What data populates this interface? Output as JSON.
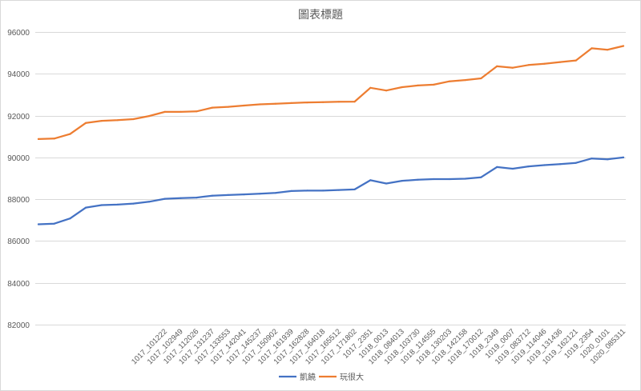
{
  "chart_data": {
    "type": "line",
    "title": "圖表標題",
    "xlabel": "",
    "ylabel": "",
    "ylim": [
      82000,
      96000
    ],
    "yticks": [
      82000,
      84000,
      86000,
      88000,
      90000,
      92000,
      94000,
      96000
    ],
    "grid": true,
    "legend": "bottom",
    "categories": [
      "",
      "",
      "",
      "",
      "",
      "",
      "",
      "",
      "1017_101222",
      "1017_102949",
      "1017_112026",
      "1017_131237",
      "1017_133553",
      "1017_142041",
      "1017_145237",
      "1017_150902",
      "1017_161939",
      "1017_162828",
      "1017_164018",
      "1017_165512",
      "1017_171802",
      "1017_2351",
      "1018_0013",
      "1018_084013",
      "1018_103730",
      "1018_114555",
      "1018_130203",
      "1018_142158",
      "1018_170012",
      "1018_2349",
      "1019_0007",
      "1019_083712",
      "1019_114046",
      "1019_131436",
      "1019_162121",
      "1019_2354",
      "1020_0101",
      "1020_085311"
    ],
    "series": [
      {
        "name": "凱饒",
        "color": "#4472C4",
        "values": [
          86800,
          86830,
          87080,
          87600,
          87720,
          87740,
          87790,
          87880,
          88020,
          88050,
          88080,
          88170,
          88200,
          88230,
          88260,
          88300,
          88390,
          88410,
          88410,
          88440,
          88470,
          88910,
          88750,
          88880,
          88930,
          88960,
          88960,
          88980,
          89050,
          89540,
          89460,
          89570,
          89630,
          89680,
          89740,
          89950,
          89910,
          90000
        ]
      },
      {
        "name": "玩很大",
        "color": "#ED7D31",
        "values": [
          90880,
          90900,
          91120,
          91650,
          91750,
          91780,
          91830,
          91980,
          92180,
          92180,
          92200,
          92380,
          92420,
          92480,
          92540,
          92570,
          92600,
          92630,
          92640,
          92660,
          92670,
          93330,
          93200,
          93360,
          93440,
          93480,
          93640,
          93700,
          93780,
          94360,
          94290,
          94420,
          94480,
          94560,
          94640,
          95220,
          95150,
          95330
        ]
      }
    ]
  }
}
